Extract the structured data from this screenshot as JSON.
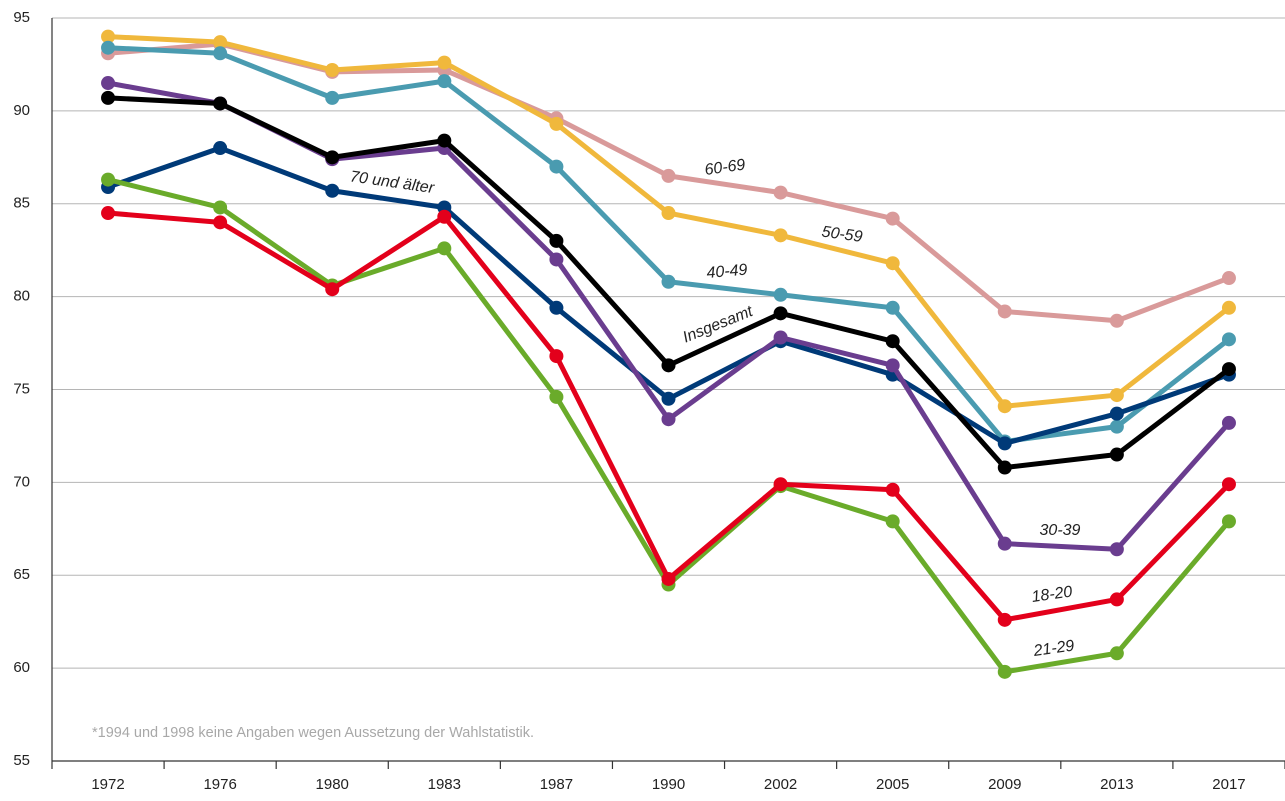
{
  "chart_data": {
    "type": "line",
    "footnote": "*1994 und 1998 keine Angaben wegen Aussetzung der Wahlstatistik.",
    "categories": [
      "1972",
      "1976",
      "1980",
      "1983",
      "1987",
      "1990",
      "2002",
      "2005",
      "2009",
      "2013",
      "2017"
    ],
    "ylim": [
      55,
      95
    ],
    "yticks": [
      55,
      60,
      65,
      70,
      75,
      80,
      85,
      90,
      95
    ],
    "grid": true,
    "series": [
      {
        "name": "60-69",
        "color": "#d99a9a",
        "values": [
          93.1,
          93.6,
          92.1,
          92.2,
          89.6,
          86.5,
          85.6,
          84.2,
          79.2,
          78.7,
          81.0
        ]
      },
      {
        "name": "50-59",
        "color": "#f0b83c",
        "values": [
          94.0,
          93.7,
          92.2,
          92.6,
          89.3,
          84.5,
          83.3,
          81.8,
          74.1,
          74.7,
          79.4
        ]
      },
      {
        "name": "40-49",
        "color": "#4a9bb0",
        "values": [
          93.4,
          93.1,
          90.7,
          91.6,
          87.0,
          80.8,
          80.1,
          79.4,
          72.2,
          73.0,
          77.7
        ]
      },
      {
        "name": "70 und älter",
        "color": "#003a78",
        "values": [
          85.9,
          88.0,
          85.7,
          84.8,
          79.4,
          74.5,
          77.6,
          75.8,
          72.1,
          73.7,
          75.8
        ]
      },
      {
        "name": "30-39",
        "color": "#6a3d8f",
        "values": [
          91.5,
          90.4,
          87.4,
          88.0,
          82.0,
          73.4,
          77.8,
          76.3,
          66.7,
          66.4,
          73.2
        ]
      },
      {
        "name": "21-29",
        "color": "#6aab2a",
        "values": [
          86.3,
          84.8,
          80.6,
          82.6,
          74.6,
          64.5,
          69.8,
          67.9,
          59.8,
          60.8,
          67.9
        ]
      },
      {
        "name": "18-20",
        "color": "#e3001b",
        "values": [
          84.5,
          84.0,
          80.4,
          84.3,
          76.8,
          64.8,
          69.9,
          69.6,
          62.6,
          63.7,
          69.9
        ]
      },
      {
        "name": "Insgesamt",
        "color": "#000000",
        "values": [
          90.7,
          90.4,
          87.5,
          88.4,
          83.0,
          76.3,
          79.1,
          77.6,
          70.8,
          71.5,
          76.1
        ]
      }
    ]
  }
}
